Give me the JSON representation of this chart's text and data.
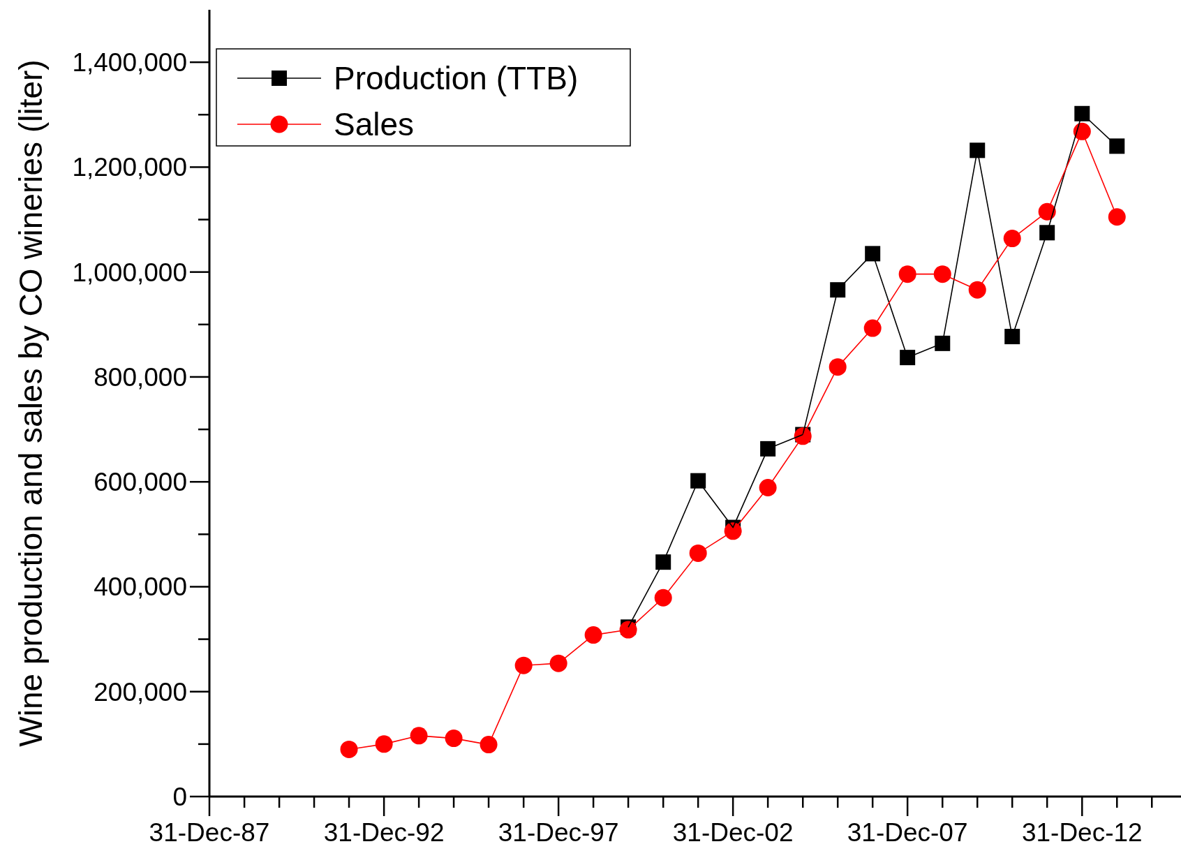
{
  "chart_data": {
    "type": "line",
    "ylabel": "Wine production and sales by CO wineries (liter)",
    "xlim": [
      "1987-12-31",
      "2015-11-01"
    ],
    "xticks": [
      {
        "value": "1987-12-31",
        "label": "31-Dec-87"
      },
      {
        "value": "1988-12-31",
        "label": null
      },
      {
        "value": "1989-12-31",
        "label": null
      },
      {
        "value": "1990-12-31",
        "label": null
      },
      {
        "value": "1991-12-31",
        "label": null
      },
      {
        "value": "1992-12-31",
        "label": "31-Dec-92"
      },
      {
        "value": "1993-12-31",
        "label": null
      },
      {
        "value": "1994-12-31",
        "label": null
      },
      {
        "value": "1995-12-31",
        "label": null
      },
      {
        "value": "1996-12-31",
        "label": null
      },
      {
        "value": "1997-12-31",
        "label": "31-Dec-97"
      },
      {
        "value": "1998-12-31",
        "label": null
      },
      {
        "value": "1999-12-31",
        "label": null
      },
      {
        "value": "2000-12-31",
        "label": null
      },
      {
        "value": "2001-12-31",
        "label": null
      },
      {
        "value": "2002-12-31",
        "label": "31-Dec-02"
      },
      {
        "value": "2003-12-31",
        "label": null
      },
      {
        "value": "2004-12-31",
        "label": null
      },
      {
        "value": "2005-12-31",
        "label": null
      },
      {
        "value": "2006-12-31",
        "label": null
      },
      {
        "value": "2007-12-31",
        "label": "31-Dec-07"
      },
      {
        "value": "2008-12-31",
        "label": null
      },
      {
        "value": "2009-12-31",
        "label": null
      },
      {
        "value": "2010-12-31",
        "label": null
      },
      {
        "value": "2011-12-31",
        "label": null
      },
      {
        "value": "2012-12-31",
        "label": "31-Dec-12"
      },
      {
        "value": "2013-12-31",
        "label": null
      },
      {
        "value": "2014-12-31",
        "label": null
      }
    ],
    "ylim": [
      0,
      1500000
    ],
    "yticks": [
      {
        "value": 0,
        "label": "0"
      },
      {
        "value": 100000,
        "label": null
      },
      {
        "value": 200000,
        "label": "200,000"
      },
      {
        "value": 300000,
        "label": null
      },
      {
        "value": 400000,
        "label": "400,000"
      },
      {
        "value": 500000,
        "label": null
      },
      {
        "value": 600000,
        "label": "600,000"
      },
      {
        "value": 700000,
        "label": null
      },
      {
        "value": 800000,
        "label": "800,000"
      },
      {
        "value": 900000,
        "label": null
      },
      {
        "value": 1000000,
        "label": "1,000,000"
      },
      {
        "value": 1100000,
        "label": null
      },
      {
        "value": 1200000,
        "label": "1,200,000"
      },
      {
        "value": 1300000,
        "label": null
      },
      {
        "value": 1400000,
        "label": "1,400,000"
      }
    ],
    "legend": "top left",
    "grid": false,
    "line_style": "solid",
    "series": [
      {
        "name": "Production (TTB)",
        "color": "#000000",
        "marker": "square",
        "x": [
          "1999-12-31",
          "2000-12-31",
          "2001-12-31",
          "2002-12-31",
          "2003-12-31",
          "2004-12-31",
          "2005-12-31",
          "2006-12-31",
          "2007-12-31",
          "2008-12-31",
          "2009-12-31",
          "2010-12-31",
          "2011-12-31",
          "2012-12-31",
          "2013-12-31"
        ],
        "values": [
          323000,
          447000,
          602000,
          513000,
          663000,
          690000,
          966000,
          1035000,
          837000,
          864000,
          1232000,
          877000,
          1075000,
          1302000,
          1240000
        ]
      },
      {
        "name": "Sales",
        "color": "#ff0000",
        "marker": "circle",
        "x": [
          "1991-12-31",
          "1992-12-31",
          "1993-12-31",
          "1994-12-31",
          "1995-12-31",
          "1996-12-31",
          "1997-12-31",
          "1998-12-31",
          "1999-12-31",
          "2000-12-31",
          "2001-12-31",
          "2002-12-31",
          "2003-12-31",
          "2004-12-31",
          "2005-12-31",
          "2006-12-31",
          "2007-12-31",
          "2008-12-31",
          "2009-12-31",
          "2010-12-31",
          "2011-12-31",
          "2012-12-31",
          "2013-12-31"
        ],
        "values": [
          90000,
          100000,
          116000,
          111000,
          99000,
          250000,
          254000,
          308000,
          318000,
          379000,
          464000,
          506000,
          589000,
          687000,
          819000,
          893000,
          996000,
          996000,
          966000,
          1064000,
          1115000,
          1268000,
          1105000
        ]
      }
    ]
  }
}
